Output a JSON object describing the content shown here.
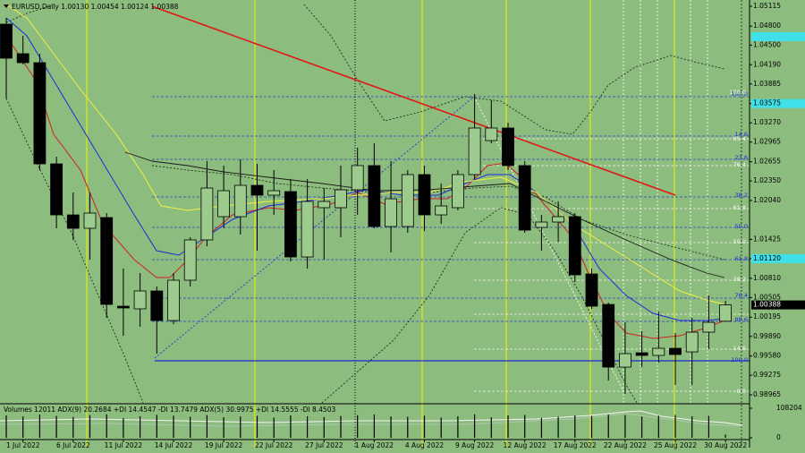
{
  "chart_data": {
    "type": "candlestick",
    "title": "EURUSD,Daily  1.00130 1.00454 1.00124 1.00388",
    "categories": [
      null,
      "1 Jul 2022",
      null,
      null,
      "6 Jul 2022",
      null,
      null,
      "11 Jul 2022",
      null,
      null,
      "14 Jul 2022",
      null,
      null,
      "19 Jul 2022",
      null,
      null,
      "22 Jul 2022",
      null,
      null,
      "27 Jul 2022",
      null,
      null,
      "1 Aug 2022",
      null,
      null,
      "4 Aug 2022",
      null,
      null,
      "9 Aug 2022",
      null,
      null,
      "12 Aug 2022",
      null,
      null,
      "17 Aug 2022",
      null,
      null,
      "22 Aug 2022",
      null,
      null,
      "25 Aug 2022",
      null,
      null,
      "30 Aug 2022"
    ],
    "open": [
      1.04832,
      1.04364,
      1.04222,
      1.02621,
      1.01813,
      1.01601,
      1.01771,
      1.00368,
      1.00326,
      1.00609,
      1.00141,
      1.00779,
      1.01417,
      1.01785,
      1.01785,
      1.02281,
      1.02125,
      1.02182,
      1.01147,
      1.01927,
      1.01927,
      1.0221,
      1.02593,
      1.01629,
      1.01629,
      1.02451,
      1.01813,
      1.01927,
      1.02451,
      1.02989,
      1.03188,
      1.02593,
      1.01615,
      1.017,
      1.01785,
      1.00878,
      1.00396,
      0.99404,
      0.99631,
      0.99589,
      0.99702,
      0.99645,
      0.99957,
      1.0013
    ],
    "high": [
      1.04931,
      1.04647,
      1.04364,
      1.02734,
      1.02168,
      1.02168,
      1.01842,
      1.00963,
      1.00892,
      1.0068,
      1.00892,
      1.01459,
      1.02664,
      1.02593,
      1.02692,
      1.02621,
      1.02522,
      1.0238,
      1.0238,
      1.02238,
      1.02593,
      1.02876,
      1.02947,
      1.02664,
      1.02522,
      1.02593,
      1.02309,
      1.02522,
      1.03726,
      1.03627,
      1.03273,
      1.02664,
      1.01813,
      1.02026,
      1.01842,
      1.00963,
      1.00425,
      1.00113,
      0.99971,
      1.00283,
      0.99943,
      1.00184,
      1.00538,
      1.00454
    ],
    "low": [
      1.03655,
      1.04194,
      1.02522,
      1.01601,
      1.01417,
      1.01105,
      1.00184,
      0.999,
      1.00042,
      0.99617,
      1.00085,
      1.0068,
      1.01317,
      1.01601,
      1.01502,
      1.01247,
      1.01813,
      1.01077,
      1.00963,
      1.01105,
      1.01459,
      1.01813,
      1.01601,
      1.01218,
      1.0153,
      1.01558,
      1.01672,
      1.01884,
      1.0238,
      1.02947,
      1.02522,
      1.0153,
      1.01247,
      1.01388,
      1.00751,
      1.00326,
      0.99192,
      0.98979,
      0.99404,
      0.99475,
      0.99121,
      0.99121,
      0.99688,
      1.00124
    ],
    "close": [
      1.04293,
      1.04222,
      1.02621,
      1.01813,
      1.01601,
      1.01842,
      1.00396,
      1.0034,
      1.00609,
      1.00141,
      1.00779,
      1.01417,
      1.02238,
      1.02196,
      1.02281,
      1.02125,
      1.02196,
      1.01147,
      1.02026,
      1.02026,
      1.0221,
      1.02593,
      1.01629,
      1.02068,
      1.02451,
      1.01813,
      1.01955,
      1.02451,
      1.03188,
      1.03188,
      1.02593,
      1.01572,
      1.017,
      1.01785,
      1.00864,
      1.00368,
      0.99404,
      0.99617,
      0.99589,
      0.99702,
      0.99603,
      0.99957,
      1.00113,
      1.00388
    ],
    "ylim": [
      0.98838,
      1.05214
    ],
    "yticks": [
      1.05115,
      {
        "value": 1.048,
        "label": "1.04800"
      },
      {
        "value": 1.045,
        "label": "1.04500"
      },
      {
        "value": 1.0419,
        "label": "1.04190"
      },
      1.03885,
      1.03575,
      {
        "value": 1.0327,
        "label": "1.03270"
      },
      1.02965,
      1.02655,
      {
        "value": 1.0235,
        "label": "1.02350"
      },
      {
        "value": 1.0204,
        "label": "1.02040"
      },
      1.01425,
      {
        "value": 1.0112,
        "label": "1.01120"
      },
      {
        "value": 1.0081,
        "label": "1.00810"
      },
      1.00505,
      1.00195,
      {
        "value": 0.9989,
        "label": "0.99890"
      },
      {
        "value": 0.9958,
        "label": "0.99580"
      },
      0.99275,
      0.98965
    ],
    "fib_labels_blue": [
      "100.0",
      "14.6",
      "23.6",
      "38.2",
      "50.0",
      "61.8",
      "76.4",
      "88.6",
      "100.0"
    ],
    "fib_labels_white": [
      "100.0",
      "85.4",
      "76.4",
      "61.8",
      "50.0",
      "38.2",
      "14.6",
      "0.0"
    ],
    "volume": {
      "label": "Volumes 12011  ADX(9) 20.2684 +DI 14.4547 -DI 13.7479  ADX(5) 30.9975 +DI 14.5555 -DI 8.4503",
      "values": [
        82000,
        78000,
        85000,
        80000,
        76000,
        83000,
        86000,
        72000,
        79000,
        84000,
        81000,
        77000,
        83000,
        75000,
        78000,
        80000,
        74000,
        82000,
        79000,
        76000,
        80000,
        83000,
        85000,
        78000,
        77000,
        81000,
        74000,
        79000,
        86000,
        75000,
        82000,
        84000,
        73000,
        77000,
        82000,
        80000,
        85000,
        83000,
        78000,
        81000,
        84000,
        79000,
        80000,
        12011
      ],
      "ylim": [
        0,
        108204
      ],
      "yticks": [
        108204,
        0
      ]
    }
  }
}
